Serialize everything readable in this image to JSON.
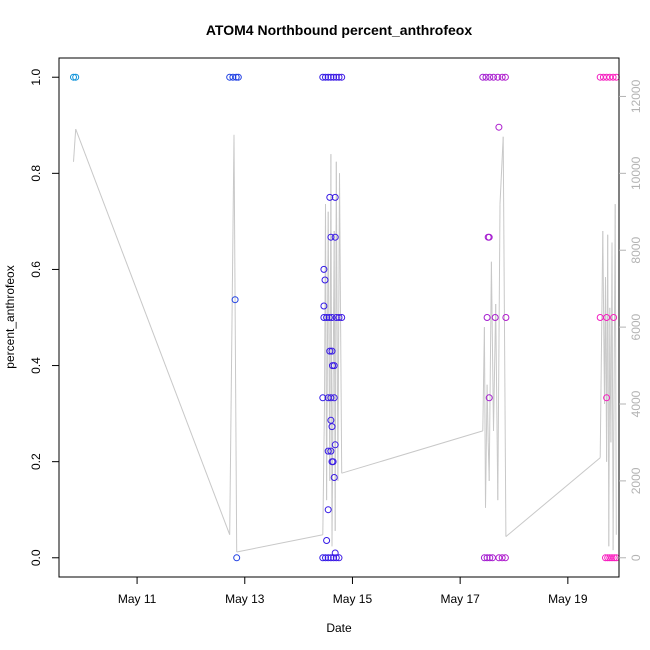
{
  "chart_data": {
    "type": "scatter",
    "title": "ATOM4 Northbound percent_anthrofeox",
    "xlabel": "Date",
    "ylabel": "percent_anthrofeox",
    "xlim": [
      9.55,
      19.95
    ],
    "ylim": [
      -0.04,
      1.04
    ],
    "x_ticks": [
      11,
      13,
      15,
      17,
      19
    ],
    "x_tick_labels": [
      "May 11",
      "May 13",
      "May 15",
      "May 17",
      "May 19"
    ],
    "y_ticks": [
      0.0,
      0.2,
      0.4,
      0.6,
      0.8,
      1.0
    ],
    "y_tick_labels": [
      "0.0",
      "0.2",
      "0.4",
      "0.6",
      "0.8",
      "1.0"
    ],
    "y2_ticks": [
      0,
      2000,
      4000,
      6000,
      8000,
      10000,
      12000
    ],
    "y2_tick_labels": [
      "0",
      "2000",
      "4000",
      "6000",
      "8000",
      "10000",
      "12000"
    ],
    "y2lim": [
      -500,
      13000
    ],
    "point_color_start": "#0b9ad8",
    "point_color_mid": "#2a1ae8",
    "point_color_end": "#ff1ebe",
    "line_color": "#c8c8c8",
    "points": [
      [
        9.82,
        1
      ],
      [
        9.86,
        1
      ],
      [
        12.72,
        1
      ],
      [
        12.78,
        1
      ],
      [
        12.84,
        1
      ],
      [
        12.88,
        1
      ],
      [
        12.82,
        0.537
      ],
      [
        12.85,
        0
      ],
      [
        14.45,
        1
      ],
      [
        14.5,
        1
      ],
      [
        14.55,
        1
      ],
      [
        14.6,
        1
      ],
      [
        14.65,
        1
      ],
      [
        14.7,
        1
      ],
      [
        14.75,
        1
      ],
      [
        14.8,
        1
      ],
      [
        14.47,
        0.6
      ],
      [
        14.49,
        0.578
      ],
      [
        14.47,
        0.524
      ],
      [
        14.47,
        0.5
      ],
      [
        14.52,
        0.5
      ],
      [
        14.57,
        0.5
      ],
      [
        14.62,
        0.5
      ],
      [
        14.7,
        0.5
      ],
      [
        14.75,
        0.5
      ],
      [
        14.8,
        0.5
      ],
      [
        14.58,
        0.75
      ],
      [
        14.68,
        0.75
      ],
      [
        14.6,
        0.667
      ],
      [
        14.68,
        0.667
      ],
      [
        14.58,
        0.43
      ],
      [
        14.62,
        0.43
      ],
      [
        14.63,
        0.4
      ],
      [
        14.66,
        0.4
      ],
      [
        14.45,
        0.333
      ],
      [
        14.55,
        0.333
      ],
      [
        14.6,
        0.333
      ],
      [
        14.66,
        0.333
      ],
      [
        14.6,
        0.286
      ],
      [
        14.62,
        0.273
      ],
      [
        14.68,
        0.235
      ],
      [
        14.55,
        0.222
      ],
      [
        14.6,
        0.222
      ],
      [
        14.62,
        0.2
      ],
      [
        14.64,
        0.2
      ],
      [
        14.66,
        0.167
      ],
      [
        14.55,
        0.1
      ],
      [
        14.52,
        0.036
      ],
      [
        14.68,
        0.01
      ],
      [
        14.45,
        0
      ],
      [
        14.5,
        0
      ],
      [
        14.55,
        0
      ],
      [
        14.6,
        0
      ],
      [
        14.65,
        0
      ],
      [
        14.7,
        0
      ],
      [
        14.75,
        0
      ],
      [
        17.42,
        1
      ],
      [
        17.48,
        1
      ],
      [
        17.55,
        1
      ],
      [
        17.62,
        1
      ],
      [
        17.7,
        1
      ],
      [
        17.78,
        1
      ],
      [
        17.84,
        1
      ],
      [
        17.72,
        0.896
      ],
      [
        17.52,
        0.667
      ],
      [
        17.54,
        0.667
      ],
      [
        17.5,
        0.5
      ],
      [
        17.65,
        0.5
      ],
      [
        17.85,
        0.5
      ],
      [
        17.54,
        0.333
      ],
      [
        17.45,
        0
      ],
      [
        17.5,
        0
      ],
      [
        17.55,
        0
      ],
      [
        17.6,
        0
      ],
      [
        17.72,
        0
      ],
      [
        17.78,
        0
      ],
      [
        17.84,
        0
      ],
      [
        19.6,
        1
      ],
      [
        19.66,
        1
      ],
      [
        19.72,
        1
      ],
      [
        19.78,
        1
      ],
      [
        19.84,
        1
      ],
      [
        19.9,
        1
      ],
      [
        19.6,
        0.5
      ],
      [
        19.72,
        0.5
      ],
      [
        19.85,
        0.5
      ],
      [
        19.72,
        0.333
      ],
      [
        19.7,
        0
      ],
      [
        19.74,
        0
      ],
      [
        19.78,
        0
      ],
      [
        19.82,
        0
      ],
      [
        19.86,
        0
      ],
      [
        19.9,
        0
      ]
    ],
    "line_series_name": "right axis series",
    "line": [
      [
        9.82,
        10300
      ],
      [
        9.86,
        11150
      ],
      [
        12.72,
        600
      ],
      [
        12.8,
        11000
      ],
      [
        12.85,
        150
      ],
      [
        14.45,
        600
      ],
      [
        14.48,
        4000
      ],
      [
        14.5,
        9200
      ],
      [
        14.52,
        1500
      ],
      [
        14.55,
        9000
      ],
      [
        14.58,
        2000
      ],
      [
        14.6,
        10500
      ],
      [
        14.62,
        300
      ],
      [
        14.66,
        8500
      ],
      [
        14.68,
        700
      ],
      [
        14.7,
        10300
      ],
      [
        14.73,
        2000
      ],
      [
        14.76,
        10000
      ],
      [
        14.8,
        2200
      ],
      [
        17.42,
        3300
      ],
      [
        17.45,
        6000
      ],
      [
        17.47,
        1300
      ],
      [
        17.5,
        4500
      ],
      [
        17.52,
        3000
      ],
      [
        17.54,
        2000
      ],
      [
        17.58,
        7700
      ],
      [
        17.62,
        3300
      ],
      [
        17.66,
        6600
      ],
      [
        17.7,
        1500
      ],
      [
        17.74,
        9200
      ],
      [
        17.8,
        10950
      ],
      [
        17.85,
        550
      ],
      [
        19.6,
        2600
      ],
      [
        19.65,
        8500
      ],
      [
        19.68,
        4000
      ],
      [
        19.7,
        7300
      ],
      [
        19.72,
        2500
      ],
      [
        19.74,
        8400
      ],
      [
        19.76,
        300
      ],
      [
        19.78,
        6500
      ],
      [
        19.8,
        3000
      ],
      [
        19.82,
        8200
      ],
      [
        19.84,
        200
      ],
      [
        19.88,
        9200
      ],
      [
        19.9,
        600
      ]
    ]
  }
}
